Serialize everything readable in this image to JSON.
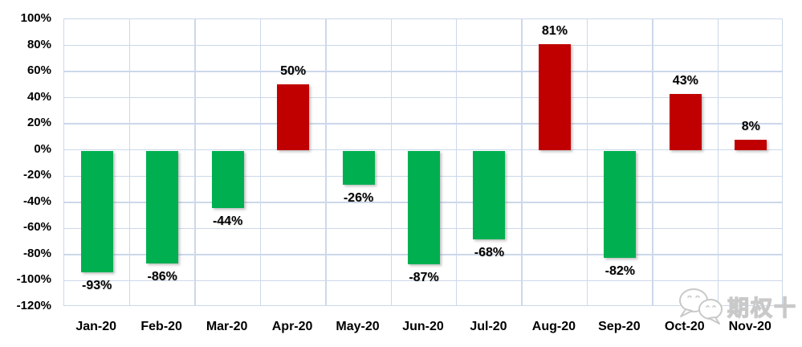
{
  "chart_data": {
    "type": "bar",
    "title": "",
    "xlabel": "",
    "ylabel": "",
    "categories": [
      "Jan-20",
      "Feb-20",
      "Mar-20",
      "Apr-20",
      "May-20",
      "Jun-20",
      "Jul-20",
      "Aug-20",
      "Sep-20",
      "Oct-20",
      "Nov-20"
    ],
    "values": [
      -93,
      -86,
      -44,
      50,
      -26,
      -87,
      -68,
      81,
      -82,
      43,
      8
    ],
    "value_labels": [
      "-93%",
      "-86%",
      "-44%",
      "50%",
      "-26%",
      "-87%",
      "-68%",
      "81%",
      "-82%",
      "43%",
      "8%"
    ],
    "y_axis": {
      "min": -120,
      "max": 100,
      "step": 20,
      "tick_labels": [
        "100%",
        "80%",
        "60%",
        "40%",
        "20%",
        "0%",
        "-20%",
        "-40%",
        "-60%",
        "-80%",
        "-100%",
        "-120%"
      ]
    },
    "colors": {
      "positive_bar": "#C00000",
      "negative_bar": "#00B050",
      "gridline": "#ccd8ea",
      "label_text": "#000000"
    },
    "grid": true,
    "legend": false,
    "data_label_position": "outside-end"
  },
  "watermark": {
    "icon": "wechat-chat-bubbles-icon",
    "text": "期权十"
  }
}
